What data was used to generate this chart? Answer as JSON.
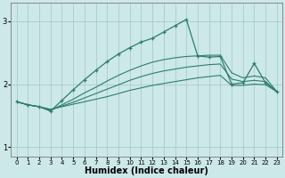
{
  "xlabel": "Humidex (Indice chaleur)",
  "bg_color": "#cce8e8",
  "line_color": "#2d7d6e",
  "grid_color": "#aacccc",
  "xlim": [
    -0.5,
    23.5
  ],
  "ylim": [
    0.85,
    3.3
  ],
  "yticks": [
    1,
    2,
    3
  ],
  "xticks": [
    0,
    1,
    2,
    3,
    4,
    5,
    6,
    7,
    8,
    9,
    10,
    11,
    12,
    13,
    14,
    15,
    16,
    17,
    18,
    19,
    20,
    21,
    22,
    23
  ],
  "series": [
    {
      "x": [
        0,
        1,
        2,
        3,
        4,
        5,
        6,
        7,
        8,
        9,
        10,
        11,
        12,
        13,
        14,
        15,
        16,
        17,
        18,
        19,
        20,
        21,
        22,
        23
      ],
      "y": [
        1.72,
        1.67,
        1.64,
        1.6,
        1.64,
        1.68,
        1.72,
        1.76,
        1.8,
        1.85,
        1.9,
        1.94,
        1.98,
        2.01,
        2.04,
        2.07,
        2.1,
        2.12,
        2.14,
        1.98,
        1.98,
        2.0,
        1.99,
        1.88
      ],
      "marker": false
    },
    {
      "x": [
        0,
        1,
        2,
        3,
        4,
        5,
        6,
        7,
        8,
        9,
        10,
        11,
        12,
        13,
        14,
        15,
        16,
        17,
        18,
        19,
        20,
        21,
        22,
        23
      ],
      "y": [
        1.72,
        1.67,
        1.64,
        1.59,
        1.65,
        1.71,
        1.78,
        1.85,
        1.92,
        1.99,
        2.06,
        2.12,
        2.17,
        2.21,
        2.24,
        2.27,
        2.29,
        2.31,
        2.32,
        2.08,
        2.04,
        2.06,
        2.04,
        1.88
      ],
      "marker": false
    },
    {
      "x": [
        0,
        1,
        2,
        3,
        4,
        5,
        6,
        7,
        8,
        9,
        10,
        11,
        12,
        13,
        14,
        15,
        16,
        17,
        18,
        19,
        20,
        21,
        22,
        23
      ],
      "y": [
        1.72,
        1.67,
        1.64,
        1.58,
        1.67,
        1.76,
        1.86,
        1.95,
        2.05,
        2.14,
        2.22,
        2.29,
        2.35,
        2.39,
        2.42,
        2.44,
        2.45,
        2.46,
        2.46,
        2.18,
        2.1,
        2.13,
        2.1,
        1.88
      ],
      "marker": false
    },
    {
      "x": [
        0,
        1,
        2,
        3,
        4,
        5,
        6,
        7,
        8,
        9,
        10,
        11,
        12,
        13,
        14,
        15,
        16,
        17,
        18,
        19,
        20,
        21,
        22,
        23
      ],
      "y": [
        1.72,
        1.67,
        1.64,
        1.57,
        1.74,
        1.91,
        2.07,
        2.22,
        2.36,
        2.48,
        2.58,
        2.67,
        2.73,
        2.83,
        2.93,
        3.03,
        2.45,
        2.43,
        2.44,
        2.0,
        2.02,
        2.33,
        2.02,
        1.88
      ],
      "marker": true
    }
  ]
}
